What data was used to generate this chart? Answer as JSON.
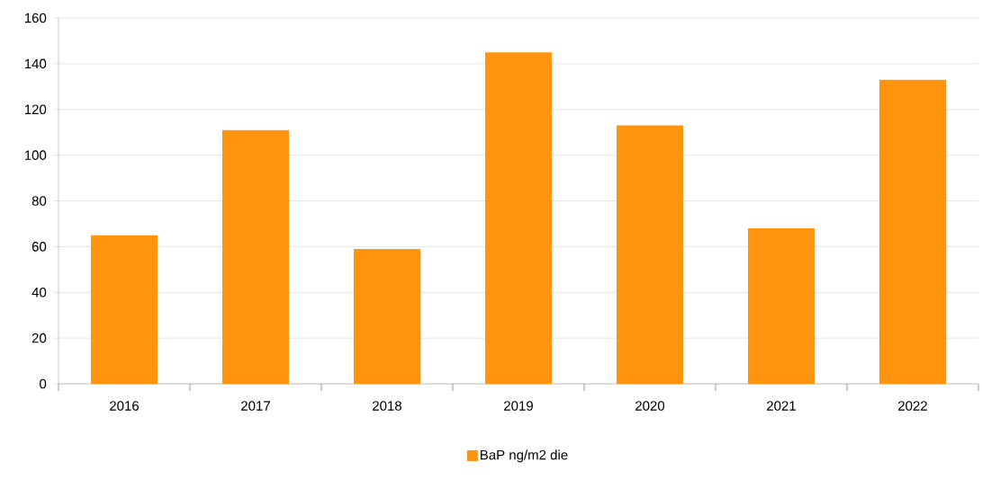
{
  "chart_data": {
    "type": "bar",
    "categories": [
      "2016",
      "2017",
      "2018",
      "2019",
      "2020",
      "2021",
      "2022"
    ],
    "series": [
      {
        "name": "BaP ng/m2 die",
        "color": "#ff950e",
        "values": [
          65,
          111,
          59,
          145,
          113,
          68,
          133
        ]
      }
    ],
    "ylim": [
      0,
      160
    ],
    "yticks": [
      0,
      20,
      40,
      60,
      80,
      100,
      120,
      140,
      160
    ],
    "grid": "y",
    "legend": "bottom"
  }
}
